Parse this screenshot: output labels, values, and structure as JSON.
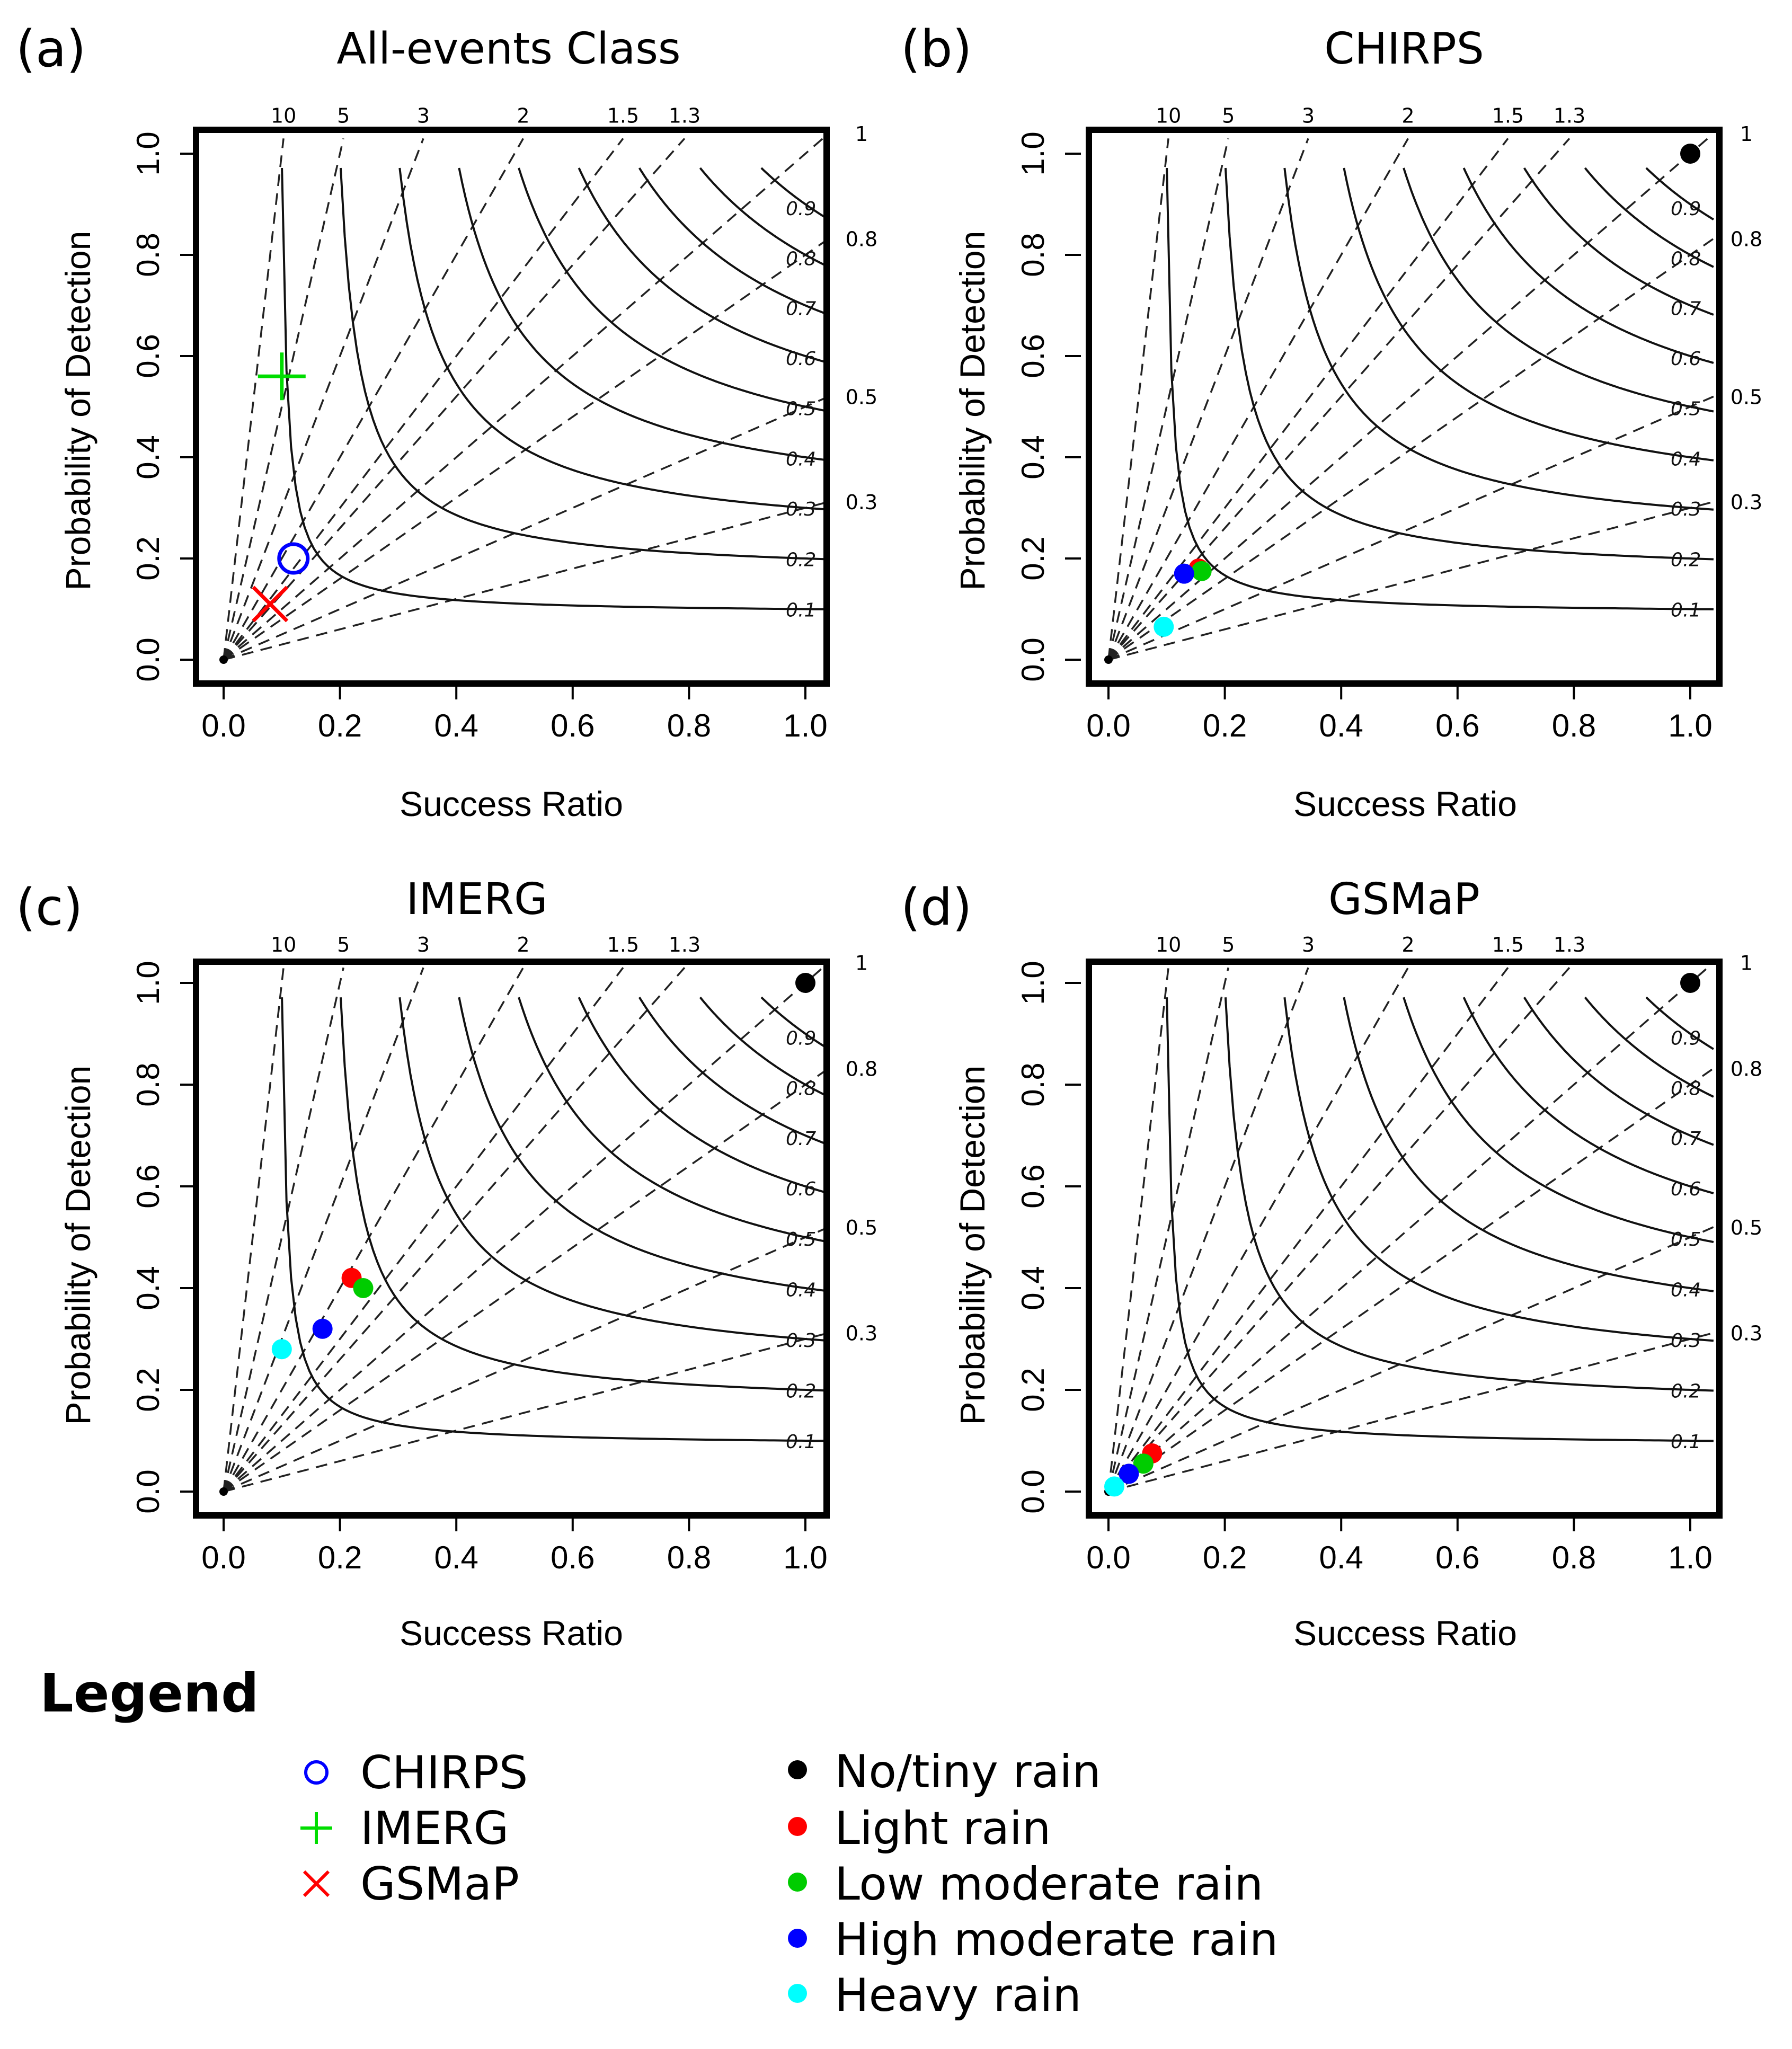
{
  "legend": {
    "title": "Legend",
    "products": [
      {
        "label": "CHIRPS",
        "marker": "circle-open",
        "color": "#0000ff"
      },
      {
        "label": "IMERG",
        "marker": "plus",
        "color": "#00dd00"
      },
      {
        "label": "GSMaP",
        "marker": "cross",
        "color": "#ff0000"
      }
    ],
    "classes": [
      {
        "label": "No/tiny rain",
        "color": "#000000"
      },
      {
        "label": "Light rain",
        "color": "#ff0000"
      },
      {
        "label": "Low moderate rain",
        "color": "#00cc00"
      },
      {
        "label": "High moderate rain",
        "color": "#0000ff"
      },
      {
        "label": "Heavy rain",
        "color": "#00ffff"
      }
    ]
  },
  "chart_data": [
    {
      "type": "scatter",
      "panel": "(a)",
      "title": "All-events Class",
      "xlabel": "Success Ratio",
      "ylabel": "Probability of Detection",
      "xlim": [
        0,
        1
      ],
      "ylim": [
        0,
        1
      ],
      "xticks": [
        "0.0",
        "0.2",
        "0.4",
        "0.6",
        "0.8",
        "1.0"
      ],
      "yticks": [
        "0.0",
        "0.2",
        "0.4",
        "0.6",
        "0.8",
        "1.0"
      ],
      "bias_labels": [
        "10",
        "5",
        "3",
        "2",
        "1.5",
        "1.3"
      ],
      "right_labels": [
        "1",
        "0.8",
        "0.5",
        "0.3"
      ],
      "csi_labels": [
        "0.9",
        "0.8",
        "0.7",
        "0.6",
        "0.5",
        "0.4",
        "0.3",
        "0.2",
        "0.1"
      ],
      "points": [
        {
          "x": 0.12,
          "y": 0.2,
          "marker": "circle-open",
          "color": "#0000ff"
        },
        {
          "x": 0.1,
          "y": 0.56,
          "marker": "plus",
          "color": "#00dd00"
        },
        {
          "x": 0.08,
          "y": 0.11,
          "marker": "cross",
          "color": "#ff0000"
        }
      ]
    },
    {
      "type": "scatter",
      "panel": "(b)",
      "title": "CHIRPS",
      "xlabel": "Success Ratio",
      "ylabel": "Probability of Detection",
      "xlim": [
        0,
        1
      ],
      "ylim": [
        0,
        1
      ],
      "xticks": [
        "0.0",
        "0.2",
        "0.4",
        "0.6",
        "0.8",
        "1.0"
      ],
      "yticks": [
        "0.0",
        "0.2",
        "0.4",
        "0.6",
        "0.8",
        "1.0"
      ],
      "bias_labels": [
        "10",
        "5",
        "3",
        "2",
        "1.5",
        "1.3"
      ],
      "right_labels": [
        "1",
        "0.8",
        "0.5",
        "0.3"
      ],
      "csi_labels": [
        "0.9",
        "0.8",
        "0.7",
        "0.6",
        "0.5",
        "0.4",
        "0.3",
        "0.2",
        "0.1"
      ],
      "points": [
        {
          "x": 1.0,
          "y": 1.0,
          "marker": "dot",
          "color": "#000000"
        },
        {
          "x": 0.155,
          "y": 0.18,
          "marker": "dot",
          "color": "#ff0000"
        },
        {
          "x": 0.16,
          "y": 0.175,
          "marker": "dot",
          "color": "#00cc00"
        },
        {
          "x": 0.13,
          "y": 0.17,
          "marker": "dot",
          "color": "#0000ff"
        },
        {
          "x": 0.095,
          "y": 0.065,
          "marker": "dot",
          "color": "#00ffff"
        }
      ]
    },
    {
      "type": "scatter",
      "panel": "(c)",
      "title": "IMERG",
      "xlabel": "Success Ratio",
      "ylabel": "Probability of Detection",
      "xlim": [
        0,
        1
      ],
      "ylim": [
        0,
        1
      ],
      "xticks": [
        "0.0",
        "0.2",
        "0.4",
        "0.6",
        "0.8",
        "1.0"
      ],
      "yticks": [
        "0.0",
        "0.2",
        "0.4",
        "0.6",
        "0.8",
        "1.0"
      ],
      "bias_labels": [
        "10",
        "5",
        "3",
        "2",
        "1.5",
        "1.3"
      ],
      "right_labels": [
        "1",
        "0.8",
        "0.5",
        "0.3"
      ],
      "csi_labels": [
        "0.9",
        "0.8",
        "0.7",
        "0.6",
        "0.5",
        "0.4",
        "0.3",
        "0.2",
        "0.1"
      ],
      "points": [
        {
          "x": 1.0,
          "y": 1.0,
          "marker": "dot",
          "color": "#000000"
        },
        {
          "x": 0.22,
          "y": 0.42,
          "marker": "dot",
          "color": "#ff0000"
        },
        {
          "x": 0.24,
          "y": 0.4,
          "marker": "dot",
          "color": "#00cc00"
        },
        {
          "x": 0.17,
          "y": 0.32,
          "marker": "dot",
          "color": "#0000ff"
        },
        {
          "x": 0.1,
          "y": 0.28,
          "marker": "dot",
          "color": "#00ffff"
        }
      ]
    },
    {
      "type": "scatter",
      "panel": "(d)",
      "title": "GSMaP",
      "xlabel": "Success Ratio",
      "ylabel": "Probability of Detection",
      "xlim": [
        0,
        1
      ],
      "ylim": [
        0,
        1
      ],
      "xticks": [
        "0.0",
        "0.2",
        "0.4",
        "0.6",
        "0.8",
        "1.0"
      ],
      "yticks": [
        "0.0",
        "0.2",
        "0.4",
        "0.6",
        "0.8",
        "1.0"
      ],
      "bias_labels": [
        "10",
        "5",
        "3",
        "2",
        "1.5",
        "1.3"
      ],
      "right_labels": [
        "1",
        "0.8",
        "0.5",
        "0.3"
      ],
      "csi_labels": [
        "0.9",
        "0.8",
        "0.7",
        "0.6",
        "0.5",
        "0.4",
        "0.3",
        "0.2",
        "0.1"
      ],
      "points": [
        {
          "x": 1.0,
          "y": 1.0,
          "marker": "dot",
          "color": "#000000"
        },
        {
          "x": 0.075,
          "y": 0.075,
          "marker": "dot",
          "color": "#ff0000"
        },
        {
          "x": 0.06,
          "y": 0.055,
          "marker": "dot",
          "color": "#00cc00"
        },
        {
          "x": 0.035,
          "y": 0.035,
          "marker": "dot",
          "color": "#0000ff"
        },
        {
          "x": 0.01,
          "y": 0.01,
          "marker": "dot",
          "color": "#00ffff"
        }
      ]
    }
  ]
}
